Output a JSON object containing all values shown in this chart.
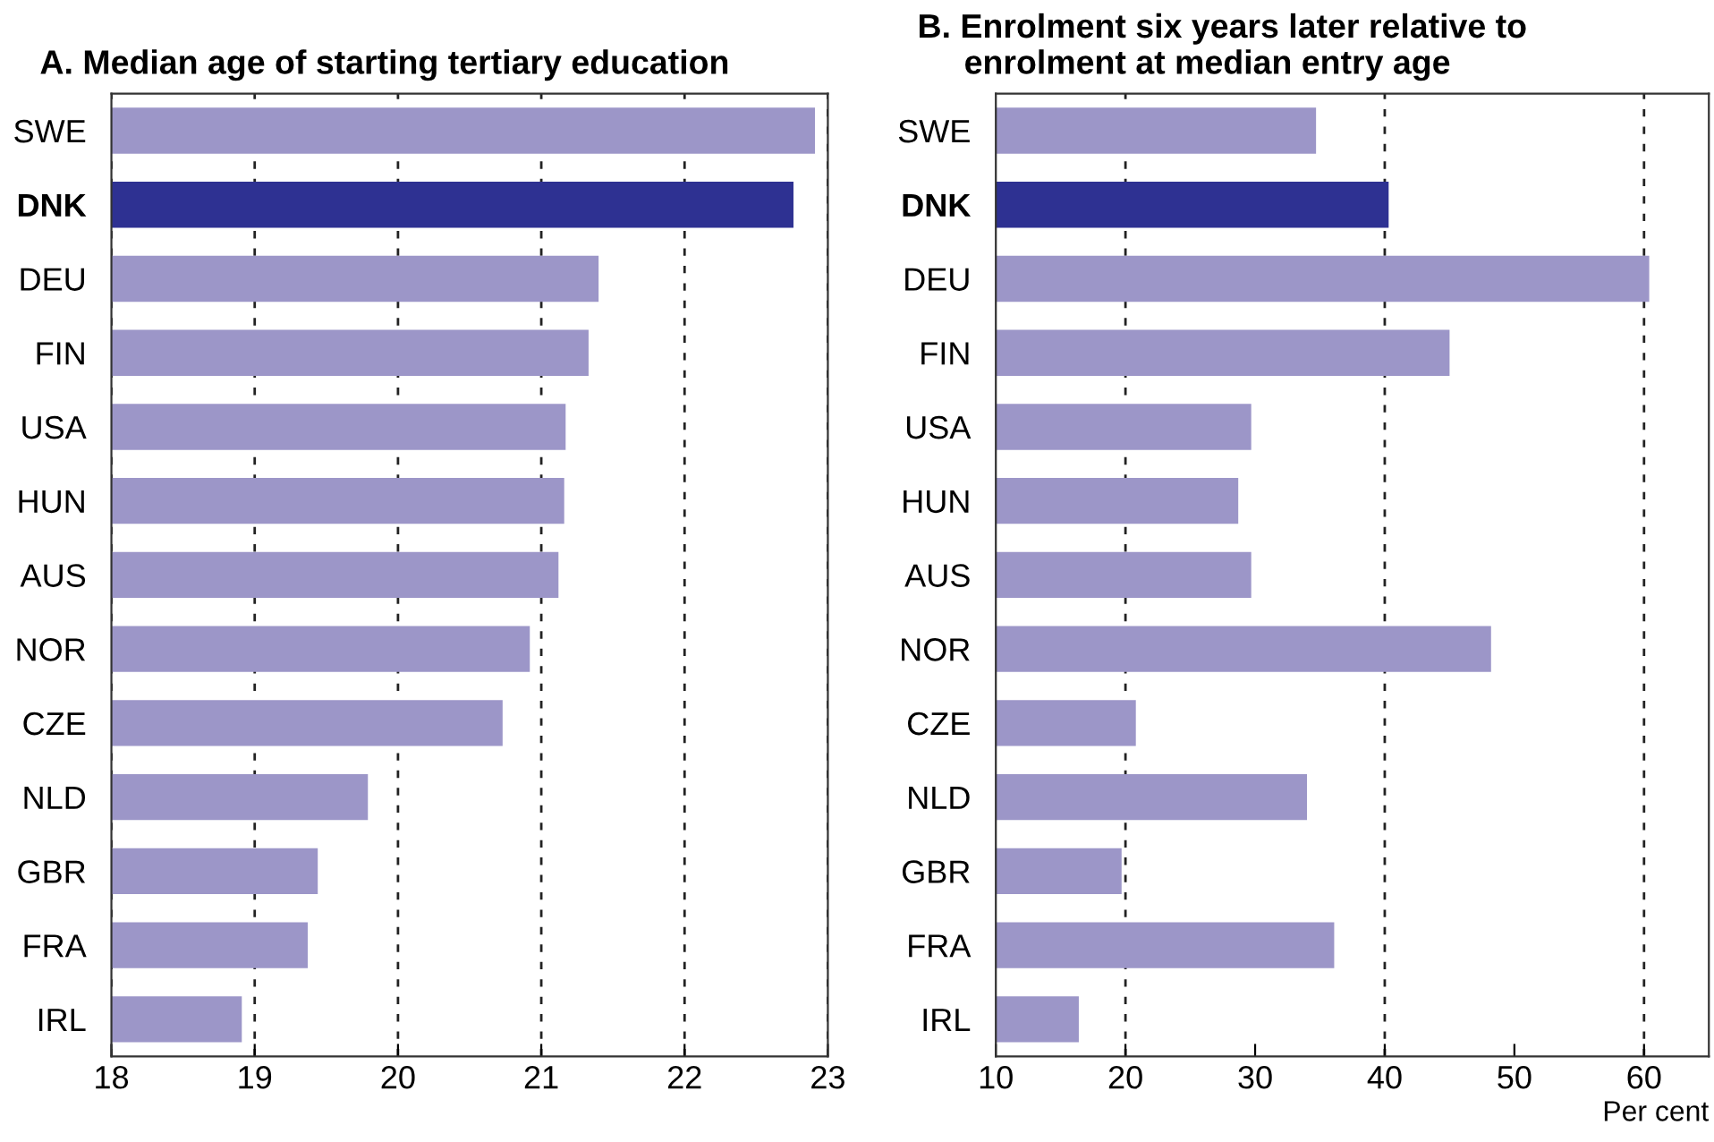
{
  "chart_data": [
    {
      "type": "bar",
      "orientation": "horizontal",
      "title": "A. Median age of starting tertiary education",
      "categories": [
        "SWE",
        "DNK",
        "DEU",
        "FIN",
        "USA",
        "HUN",
        "AUS",
        "NOR",
        "CZE",
        "NLD",
        "GBR",
        "FRA",
        "IRL"
      ],
      "values": [
        22.91,
        22.76,
        21.4,
        21.33,
        21.17,
        21.16,
        21.12,
        20.92,
        20.73,
        19.79,
        19.44,
        19.37,
        18.91
      ],
      "colors": [
        "#9c96c8",
        "#2e3192",
        "#9c96c8",
        "#9c96c8",
        "#9c96c8",
        "#9c96c8",
        "#9c96c8",
        "#9c96c8",
        "#9c96c8",
        "#9c96c8",
        "#9c96c8",
        "#9c96c8",
        "#9c96c8"
      ],
      "xlim": [
        18,
        23
      ],
      "xticks": [
        18,
        19,
        20,
        21,
        22,
        23
      ],
      "grid": "x"
    },
    {
      "type": "bar",
      "orientation": "horizontal",
      "title": "B. Enrolment six years later relative to\n     enrolment at median entry age",
      "xlabel": "Per cent",
      "categories": [
        "SWE",
        "DNK",
        "DEU",
        "FIN",
        "USA",
        "HUN",
        "AUS",
        "NOR",
        "CZE",
        "NLD",
        "GBR",
        "FRA",
        "IRL"
      ],
      "values": [
        34.7,
        40.3,
        60.4,
        45.0,
        29.7,
        28.7,
        29.7,
        48.2,
        20.8,
        34.0,
        19.7,
        36.1,
        16.4
      ],
      "colors": [
        "#9c96c8",
        "#2e3192",
        "#9c96c8",
        "#9c96c8",
        "#9c96c8",
        "#9c96c8",
        "#9c96c8",
        "#9c96c8",
        "#9c96c8",
        "#9c96c8",
        "#9c96c8",
        "#9c96c8",
        "#9c96c8"
      ],
      "xlim": [
        10,
        65
      ],
      "xticks": [
        10,
        20,
        30,
        40,
        50,
        60
      ],
      "ref_lines": [
        {
          "axis": "x",
          "value": 20,
          "line_style": "dashed"
        },
        {
          "axis": "x",
          "value": 40,
          "line_style": "dashed"
        },
        {
          "axis": "x",
          "value": 60,
          "line_style": "dashed"
        }
      ]
    }
  ]
}
